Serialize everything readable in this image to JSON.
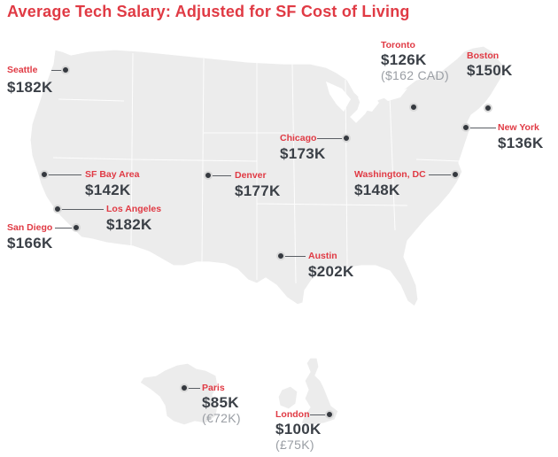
{
  "title": "Average Tech Salary: Adjusted for SF Cost of Living",
  "colors": {
    "accent": "#e03a44",
    "salary": "#3b4047",
    "local": "#9a9ea4",
    "land": "#ececec",
    "marker": "#35393f"
  },
  "cities": [
    {
      "id": "seattle",
      "name": "Seattle",
      "salary": "$182K",
      "local": ""
    },
    {
      "id": "sf-bay-area",
      "name": "SF Bay Area",
      "salary": "$142K",
      "local": ""
    },
    {
      "id": "los-angeles",
      "name": "Los Angeles",
      "salary": "$182K",
      "local": ""
    },
    {
      "id": "san-diego",
      "name": "San Diego",
      "salary": "$166K",
      "local": ""
    },
    {
      "id": "denver",
      "name": "Denver",
      "salary": "$177K",
      "local": ""
    },
    {
      "id": "chicago",
      "name": "Chicago",
      "salary": "$173K",
      "local": ""
    },
    {
      "id": "toronto",
      "name": "Toronto",
      "salary": "$126K",
      "local": "($162 CAD)"
    },
    {
      "id": "boston",
      "name": "Boston",
      "salary": "$150K",
      "local": ""
    },
    {
      "id": "new-york",
      "name": "New York",
      "salary": "$136K",
      "local": ""
    },
    {
      "id": "washington-dc",
      "name": "Washington, DC",
      "salary": "$148K",
      "local": ""
    },
    {
      "id": "austin",
      "name": "Austin",
      "salary": "$202K",
      "local": ""
    },
    {
      "id": "paris",
      "name": "Paris",
      "salary": "$85K",
      "local": "(€72K)"
    },
    {
      "id": "london",
      "name": "London",
      "salary": "$100K",
      "local": "(£75K)"
    }
  ]
}
